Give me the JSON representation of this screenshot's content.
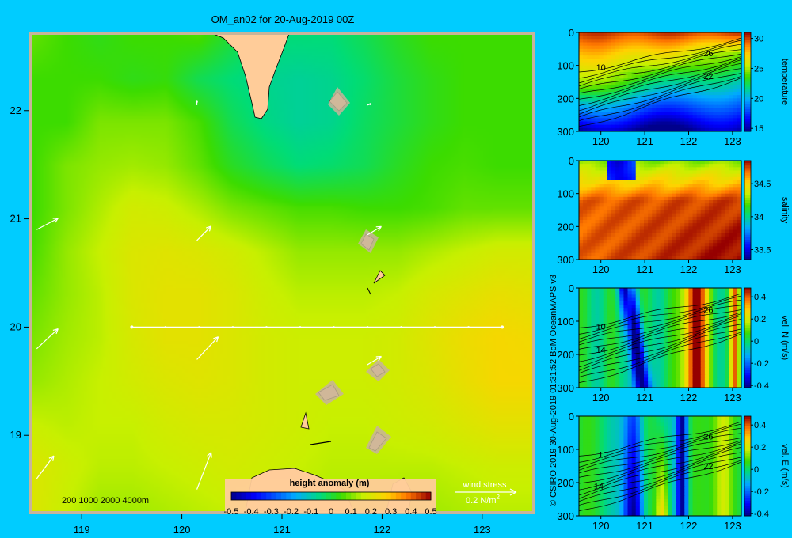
{
  "title": "OM_an02 for 20-Aug-2019 00Z",
  "credit": "© CSIRO 2019   30-Aug-2019 01:31:52 BoM OceanMAPS v3",
  "colors": {
    "background": "#00ccff",
    "land": "#ffcc99",
    "frame": "#c8b49a"
  },
  "chart_data": [
    {
      "type": "heatmap",
      "name": "map",
      "title": "OM_an02 for 20-Aug-2019 00Z",
      "xlabel": "",
      "ylabel": "",
      "xlim": [
        118.5,
        123.5
      ],
      "ylim": [
        18.3,
        22.7
      ],
      "x_ticks": [
        119,
        120,
        121,
        122,
        123
      ],
      "y_ticks": [
        19,
        20,
        21,
        22
      ],
      "colorbar": {
        "label": "height anomaly  (m)",
        "range": [
          -0.5,
          0.5
        ],
        "ticks": [
          "-0.5",
          "-0.4",
          "-0.3",
          "-0.2",
          "-0.1",
          "0",
          "0.1",
          "0.2",
          "0.3",
          "0.4",
          "0.5"
        ]
      },
      "depth_legend": "200  1000  2000  4000m",
      "wind_stress_label": "wind stress",
      "wind_stress_scale": "0.2 N/m",
      "wind_stress_exponent": "2",
      "section_line": {
        "lat": 20.0,
        "lon_start": 119.5,
        "lon_end": 123.2
      },
      "wind_vectors": [
        {
          "lon": 118.55,
          "lat": 20.9,
          "u": 0.15,
          "v": 0.08
        },
        {
          "lon": 118.55,
          "lat": 19.8,
          "u": 0.15,
          "v": 0.14
        },
        {
          "lon": 118.55,
          "lat": 18.6,
          "u": 0.12,
          "v": 0.16
        },
        {
          "lon": 120.15,
          "lat": 20.8,
          "u": 0.1,
          "v": 0.1
        },
        {
          "lon": 120.15,
          "lat": 19.7,
          "u": 0.15,
          "v": 0.16
        },
        {
          "lon": 120.15,
          "lat": 18.5,
          "u": 0.1,
          "v": 0.26
        },
        {
          "lon": 120.15,
          "lat": 22.05,
          "u": 0.0,
          "v": 0.03
        },
        {
          "lon": 121.85,
          "lat": 20.85,
          "u": 0.1,
          "v": 0.06
        },
        {
          "lon": 121.85,
          "lat": 19.65,
          "u": 0.1,
          "v": 0.06
        },
        {
          "lon": 121.85,
          "lat": 22.05,
          "u": 0.03,
          "v": 0.01
        }
      ],
      "field": [
        [
          0.08,
          0.05,
          0.03,
          0.05,
          0.05,
          0.06,
          0.0,
          -0.05,
          -0.05,
          -0.05,
          -0.02,
          0.02,
          0.05,
          0.05,
          0.05,
          0.05
        ],
        [
          0.05,
          0.05,
          0.05,
          0.03,
          0.04,
          -0.02,
          -0.05,
          -0.07,
          -0.08,
          -0.07,
          -0.04,
          0.0,
          0.03,
          0.05,
          0.05,
          0.05
        ],
        [
          0.05,
          0.05,
          0.1,
          0.1,
          0.1,
          0.06,
          -0.02,
          -0.06,
          -0.08,
          -0.07,
          -0.03,
          0.0,
          0.03,
          0.05,
          0.05,
          0.05
        ],
        [
          0.05,
          0.1,
          0.12,
          0.13,
          0.12,
          0.08,
          0.02,
          -0.02,
          -0.05,
          -0.04,
          -0.02,
          0.02,
          0.05,
          0.06,
          0.05,
          0.05
        ],
        [
          0.05,
          0.1,
          0.14,
          0.18,
          0.17,
          0.14,
          0.1,
          0.08,
          0.06,
          0.06,
          0.05,
          0.05,
          0.06,
          0.08,
          0.08,
          0.08
        ],
        [
          0.06,
          0.12,
          0.16,
          0.2,
          0.21,
          0.2,
          0.18,
          0.15,
          0.12,
          0.12,
          0.12,
          0.12,
          0.14,
          0.16,
          0.18,
          0.18
        ],
        [
          0.08,
          0.12,
          0.15,
          0.2,
          0.22,
          0.22,
          0.2,
          0.17,
          0.15,
          0.15,
          0.15,
          0.16,
          0.19,
          0.21,
          0.23,
          0.22
        ],
        [
          0.1,
          0.13,
          0.15,
          0.19,
          0.22,
          0.22,
          0.2,
          0.18,
          0.17,
          0.17,
          0.17,
          0.18,
          0.21,
          0.24,
          0.26,
          0.25
        ],
        [
          0.12,
          0.14,
          0.16,
          0.18,
          0.2,
          0.21,
          0.2,
          0.18,
          0.17,
          0.17,
          0.17,
          0.18,
          0.2,
          0.23,
          0.26,
          0.26
        ],
        [
          0.16,
          0.15,
          0.16,
          0.16,
          0.18,
          0.19,
          0.19,
          0.18,
          0.17,
          0.16,
          0.16,
          0.17,
          0.18,
          0.2,
          0.22,
          0.22
        ],
        [
          0.2,
          0.17,
          0.15,
          0.15,
          0.16,
          0.17,
          0.18,
          0.17,
          0.16,
          0.15,
          0.15,
          0.15,
          0.15,
          0.16,
          0.17,
          0.17
        ],
        [
          0.2,
          0.16,
          0.13,
          0.13,
          0.14,
          0.15,
          0.16,
          0.16,
          0.15,
          0.14,
          0.14,
          0.13,
          0.13,
          0.14,
          0.15,
          0.15
        ]
      ]
    },
    {
      "type": "heatmap",
      "name": "temperature",
      "ylabel_right": "temperature",
      "xlim": [
        119.5,
        123.2
      ],
      "ylim": [
        300,
        0
      ],
      "x_ticks": [
        "120",
        "121",
        "122",
        "123"
      ],
      "y_ticks": [
        "0",
        "100",
        "200",
        "300"
      ],
      "colorbar": {
        "range": [
          14.5,
          31
        ],
        "ticks": [
          "30",
          "25",
          "20",
          "15"
        ],
        "tick_values": [
          30,
          25,
          20,
          15
        ]
      },
      "contour_labels": [
        {
          "lon": 120.0,
          "depth": 115,
          "text": "10"
        },
        {
          "lon": 122.45,
          "depth": 72,
          "text": "26"
        },
        {
          "lon": 122.45,
          "depth": 142,
          "text": "22"
        }
      ]
    },
    {
      "type": "heatmap",
      "name": "salinity",
      "ylabel_right": "salinity",
      "xlim": [
        119.5,
        123.2
      ],
      "ylim": [
        300,
        0
      ],
      "x_ticks": [
        "120",
        "121",
        "122",
        "123"
      ],
      "y_ticks": [
        "0",
        "100",
        "200",
        "300"
      ],
      "colorbar": {
        "range": [
          33.35,
          34.85
        ],
        "ticks": [
          "34.5",
          "34",
          "33.5"
        ],
        "tick_values": [
          34.5,
          34,
          33.5
        ]
      }
    },
    {
      "type": "heatmap",
      "name": "vel_n",
      "ylabel_right": "vel. N (m/s)",
      "xlim": [
        119.5,
        123.2
      ],
      "ylim": [
        300,
        0
      ],
      "x_ticks": [
        "120",
        "121",
        "122",
        "123"
      ],
      "y_ticks": [
        "0",
        "100",
        "200",
        "300"
      ],
      "colorbar": {
        "range": [
          -0.42,
          0.48
        ],
        "ticks": [
          "0.4",
          "0.2",
          "0",
          "-0.2",
          "-0.4"
        ],
        "tick_values": [
          0.4,
          0.2,
          0,
          -0.2,
          -0.4
        ]
      },
      "contour_labels": [
        {
          "lon": 122.45,
          "depth": 75,
          "text": "26"
        },
        {
          "lon": 120.0,
          "depth": 125,
          "text": "10"
        },
        {
          "lon": 120.0,
          "depth": 195,
          "text": "14"
        }
      ]
    },
    {
      "type": "heatmap",
      "name": "vel_e",
      "ylabel_right": "vel. E (m/s)",
      "xlim": [
        119.5,
        123.2
      ],
      "ylim": [
        300,
        0
      ],
      "x_ticks": [
        "120",
        "121",
        "122",
        "123"
      ],
      "y_ticks": [
        "0",
        "100",
        "200",
        "300"
      ],
      "colorbar": {
        "range": [
          -0.42,
          0.48
        ],
        "ticks": [
          "0.4",
          "0.2",
          "0",
          "-0.2",
          "-0.4"
        ],
        "tick_values": [
          0.4,
          0.2,
          0,
          -0.2,
          -0.4
        ]
      },
      "contour_labels": [
        {
          "lon": 122.45,
          "depth": 70,
          "text": "26"
        },
        {
          "lon": 120.05,
          "depth": 125,
          "text": "10"
        },
        {
          "lon": 122.45,
          "depth": 160,
          "text": "22"
        },
        {
          "lon": 119.95,
          "depth": 220,
          "text": "14"
        }
      ]
    }
  ]
}
